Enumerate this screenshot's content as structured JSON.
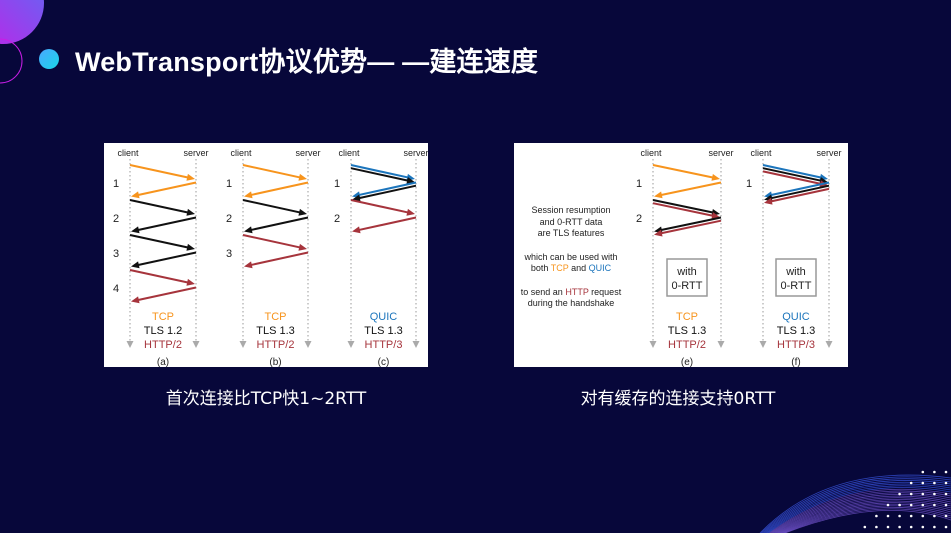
{
  "title": "WebTransport协议优势— —建连速度",
  "colors": {
    "background": "#07073a",
    "tcp": "#f7941d",
    "quic": "#1c75bc",
    "tls": "#111111",
    "http": "#a6343c",
    "box_border": "#999999"
  },
  "left_figure": {
    "caption": "首次连接比TCP快1~2RTT",
    "panels": [
      {
        "id": "a",
        "client": "client",
        "server": "server",
        "rtt_labels": [
          "1",
          "2",
          "3",
          "4"
        ],
        "protocol": "TCP",
        "protocol_color": "tcp",
        "tls": "TLS 1.2",
        "http": "HTTP/2",
        "label": "(a)",
        "legs": [
          [
            "tcp"
          ],
          [
            "tcp"
          ],
          [
            "tls"
          ],
          [
            "tls"
          ],
          [
            "tls"
          ],
          [
            "tls"
          ],
          [
            "http"
          ],
          [
            "http"
          ]
        ]
      },
      {
        "id": "b",
        "client": "client",
        "server": "server",
        "rtt_labels": [
          "1",
          "2",
          "3"
        ],
        "protocol": "TCP",
        "protocol_color": "tcp",
        "tls": "TLS 1.3",
        "http": "HTTP/2",
        "label": "(b)",
        "legs": [
          [
            "tcp"
          ],
          [
            "tcp"
          ],
          [
            "tls"
          ],
          [
            "tls"
          ],
          [
            "http"
          ],
          [
            "http"
          ]
        ]
      },
      {
        "id": "c",
        "client": "client",
        "server": "server",
        "rtt_labels": [
          "1",
          "2"
        ],
        "protocol": "QUIC",
        "protocol_color": "quic",
        "tls": "TLS 1.3",
        "http": "HTTP/3",
        "label": "(c)",
        "legs": [
          [
            "quic",
            "tls"
          ],
          [
            "quic",
            "tls"
          ],
          [
            "http"
          ],
          [
            "http"
          ]
        ]
      }
    ]
  },
  "right_figure": {
    "caption": "对有缓存的连接支持0RTT",
    "notes": {
      "line1": "Session resumption",
      "line2": "and 0-RTT data",
      "line3": "are TLS features",
      "line4": "which can be used with",
      "line5_pre": "both ",
      "line5_tcp": "TCP",
      "line5_mid": " and ",
      "line5_quic": "QUIC",
      "line6_pre": "to send an ",
      "line6_http": "HTTP",
      "line6_post": " request",
      "line7": "during the handshake"
    },
    "panels": [
      {
        "id": "e",
        "client": "client",
        "server": "server",
        "rtt_labels": [
          "1",
          "2"
        ],
        "badge_line1": "with",
        "badge_line2": "0-RTT",
        "protocol": "TCP",
        "protocol_color": "tcp",
        "tls": "TLS 1.3",
        "http": "HTTP/2",
        "label": "(e)",
        "legs": [
          [
            "tcp"
          ],
          [
            "tcp"
          ],
          [
            "tls",
            "http"
          ],
          [
            "tls",
            "http"
          ]
        ]
      },
      {
        "id": "f",
        "client": "client",
        "server": "server",
        "rtt_labels": [
          "1"
        ],
        "badge_line1": "with",
        "badge_line2": "0-RTT",
        "protocol": "QUIC",
        "protocol_color": "quic",
        "tls": "TLS 1.3",
        "http": "HTTP/3",
        "label": "(f)",
        "legs": [
          [
            "quic",
            "tls",
            "http"
          ],
          [
            "quic",
            "tls",
            "http"
          ]
        ]
      }
    ]
  }
}
